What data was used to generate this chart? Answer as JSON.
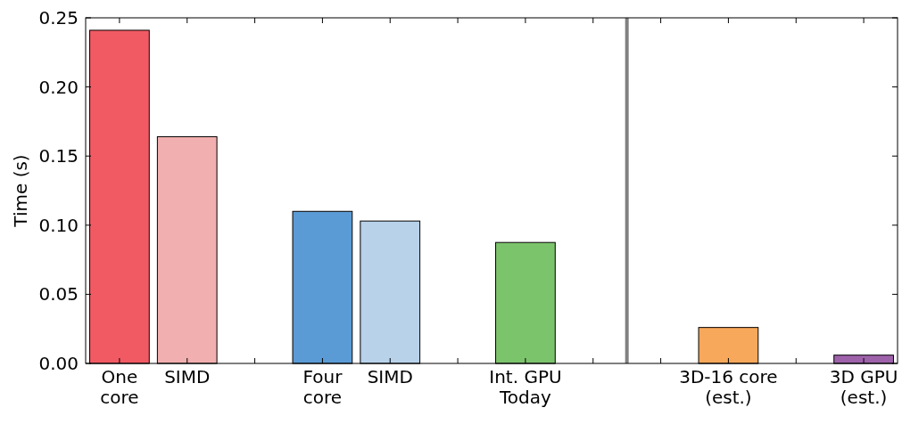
{
  "chart_data": {
    "type": "bar",
    "ylabel": "Time (s)",
    "categories": [
      "One\ncore",
      "SIMD",
      null,
      "Four\ncore",
      "SIMD",
      null,
      "Int. GPU\nToday",
      null,
      null,
      "3D-16 core\n(est.)",
      null,
      "3D GPU\n(est.)"
    ],
    "values": [
      0.241,
      0.164,
      null,
      0.11,
      0.103,
      null,
      0.0875,
      null,
      null,
      0.026,
      null,
      0.006
    ],
    "colors": [
      "#f25a63",
      "#f2afaf",
      null,
      "#5b9bd5",
      "#b8d2ea",
      null,
      "#7cc46c",
      null,
      null,
      "#f8a85a",
      null,
      "#9e62ab"
    ],
    "ylim": [
      0,
      0.25
    ],
    "yticks": [
      {
        "value": 0,
        "label": "0.00"
      },
      {
        "value": 0.05,
        "label": "0.05"
      },
      {
        "value": 0.1,
        "label": "0.10"
      },
      {
        "value": 0.15,
        "label": "0.15"
      },
      {
        "value": 0.2,
        "label": "0.20"
      },
      {
        "value": 0.25,
        "label": "0.25"
      }
    ],
    "grid": false
  }
}
